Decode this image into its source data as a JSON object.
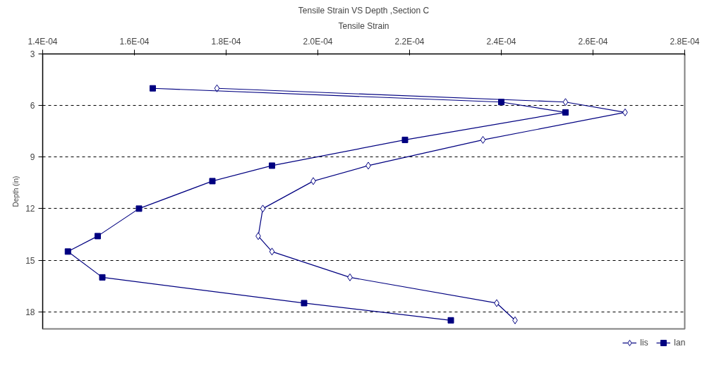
{
  "chart_data": {
    "type": "line",
    "title": "Tensile Strain VS Depth ,Section C",
    "xlabel": "Tensile Strain",
    "ylabel": "Depth (in)",
    "xlim": [
      0.00014,
      0.00028
    ],
    "xticks": [
      {
        "value": 0.00014,
        "label": "1.4E-04"
      },
      {
        "value": 0.00016,
        "label": "1.6E-04"
      },
      {
        "value": 0.00018,
        "label": "1.8E-04"
      },
      {
        "value": 0.0002,
        "label": "2.0E-04"
      },
      {
        "value": 0.00022,
        "label": "2.2E-04"
      },
      {
        "value": 0.00024,
        "label": "2.4E-04"
      },
      {
        "value": 0.00026,
        "label": "2.6E-04"
      },
      {
        "value": 0.00028,
        "label": "2.8E-04"
      }
    ],
    "ylim": [
      19,
      3
    ],
    "yticks": [
      3,
      6,
      9,
      12,
      15,
      18
    ],
    "grid": "y",
    "legend": "bottom",
    "line_style": "solid",
    "series": [
      {
        "name": "lis",
        "color": "#000080",
        "marker": "diamond",
        "x": [
          0.000178,
          0.000254,
          0.000267,
          0.000236,
          0.000211,
          0.000199,
          0.000188,
          0.000187,
          0.00019,
          0.000207,
          0.000239,
          0.000243
        ],
        "values": [
          5.0,
          5.8,
          6.4,
          8.0,
          9.5,
          10.4,
          12.0,
          13.6,
          14.5,
          16.0,
          17.5,
          18.5
        ]
      },
      {
        "name": "lan",
        "color": "#000080",
        "marker": "square",
        "x": [
          0.000164,
          0.00024,
          0.000254,
          0.000219,
          0.00019,
          0.000177,
          0.000161,
          0.000152,
          0.0001455,
          0.000153,
          0.000197,
          0.000229
        ],
        "values": [
          5.0,
          5.8,
          6.4,
          8.0,
          9.5,
          10.4,
          12.0,
          13.6,
          14.5,
          16.0,
          17.5,
          18.5
        ]
      }
    ]
  }
}
